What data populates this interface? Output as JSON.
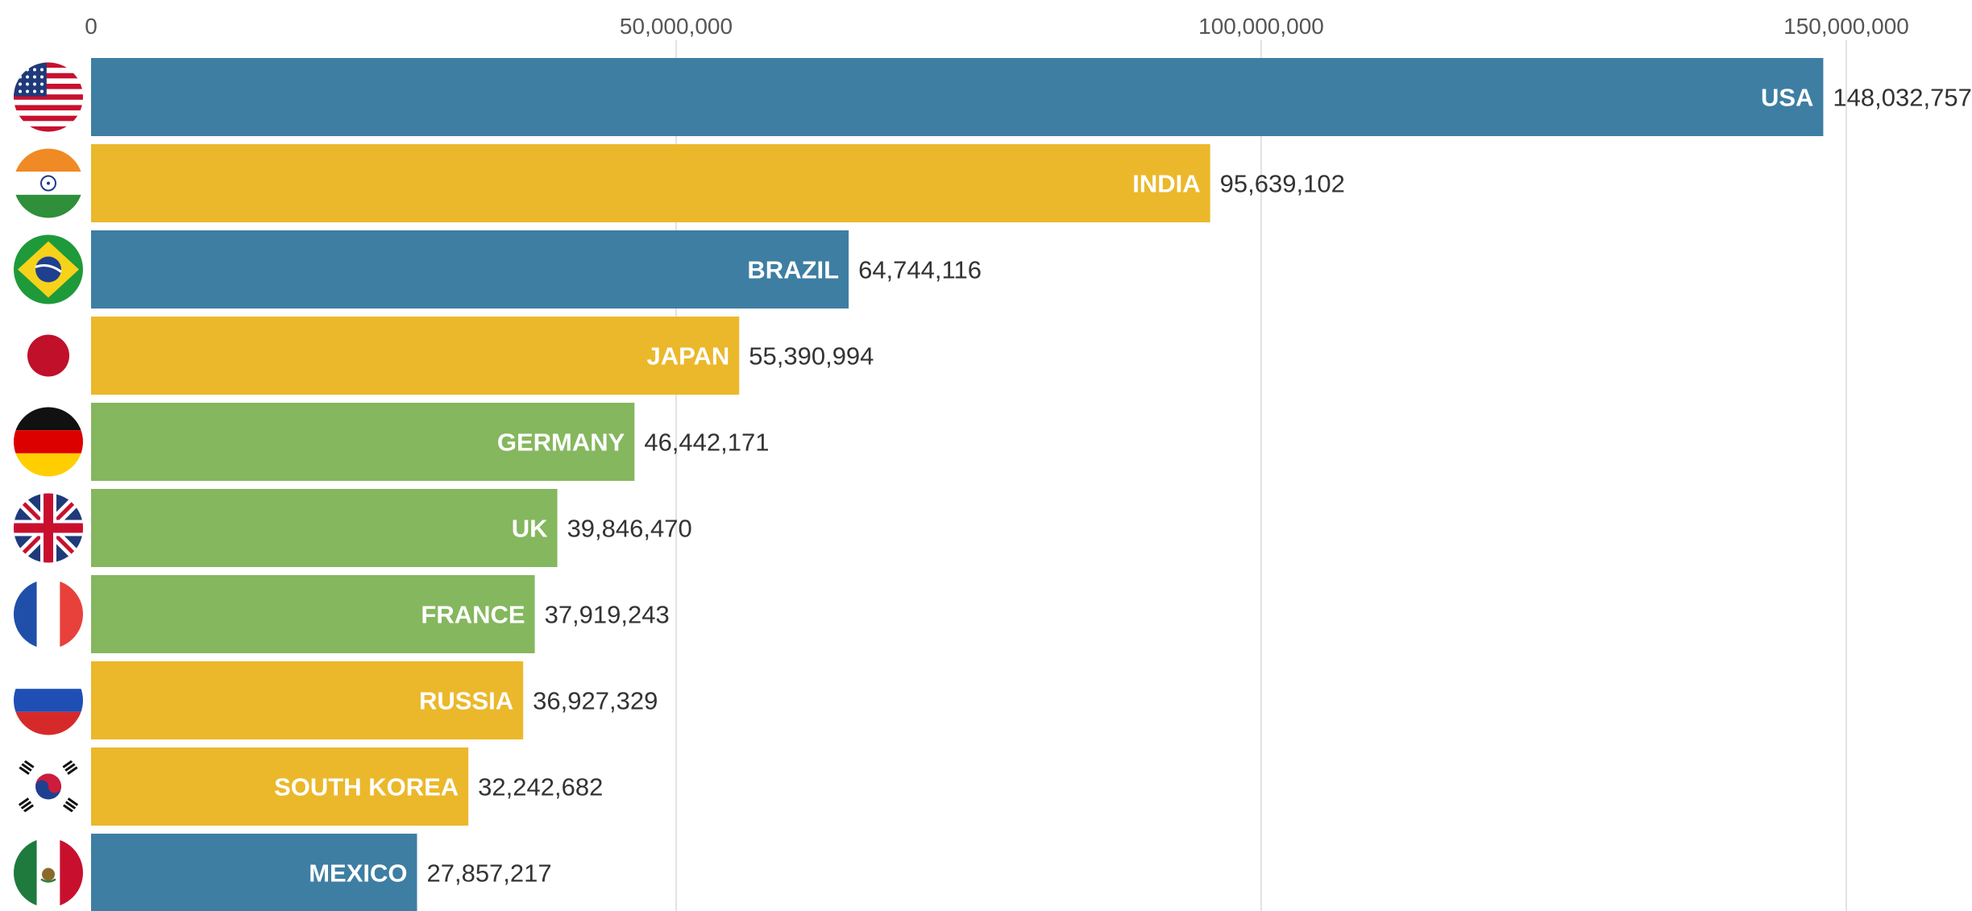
{
  "chart_data": {
    "type": "bar",
    "orientation": "horizontal",
    "axis_position": "top",
    "grid": true,
    "xlim": [
      0,
      150000000
    ],
    "x_ticks": [
      0,
      50000000,
      100000000,
      150000000
    ],
    "x_tick_labels": [
      "0",
      "50,000,000",
      "100,000,000",
      "150,000,000"
    ],
    "categories": [
      "USA",
      "INDIA",
      "BRAZIL",
      "JAPAN",
      "GERMANY",
      "UK",
      "FRANCE",
      "RUSSIA",
      "SOUTH KOREA",
      "MEXICO"
    ],
    "values": [
      148032757,
      95639102,
      64744116,
      55390994,
      46442171,
      39846470,
      37919243,
      36927329,
      32242682,
      27857217
    ],
    "value_labels": [
      "148,032,757",
      "95,639,102",
      "64,744,116",
      "55,390,994",
      "46,442,171",
      "39,846,470",
      "37,919,243",
      "36,927,329",
      "32,242,682",
      "27,857,217"
    ],
    "bar_colors": [
      "#3e7ea3",
      "#ebb82b",
      "#3e7ea3",
      "#ebb82b",
      "#85b75e",
      "#85b75e",
      "#85b75e",
      "#ebb82b",
      "#ebb82b",
      "#3e7ea3"
    ],
    "flag_icons": [
      "flag-usa-icon",
      "flag-india-icon",
      "flag-brazil-icon",
      "flag-japan-icon",
      "flag-germany-icon",
      "flag-uk-icon",
      "flag-france-icon",
      "flag-russia-icon",
      "flag-south-korea-icon",
      "flag-mexico-icon"
    ]
  },
  "colors": {
    "background": "#ffffff",
    "gridline": "#e2e2e2",
    "tick_text": "#555555",
    "value_text": "#333333",
    "bar_text": "#ffffff"
  }
}
